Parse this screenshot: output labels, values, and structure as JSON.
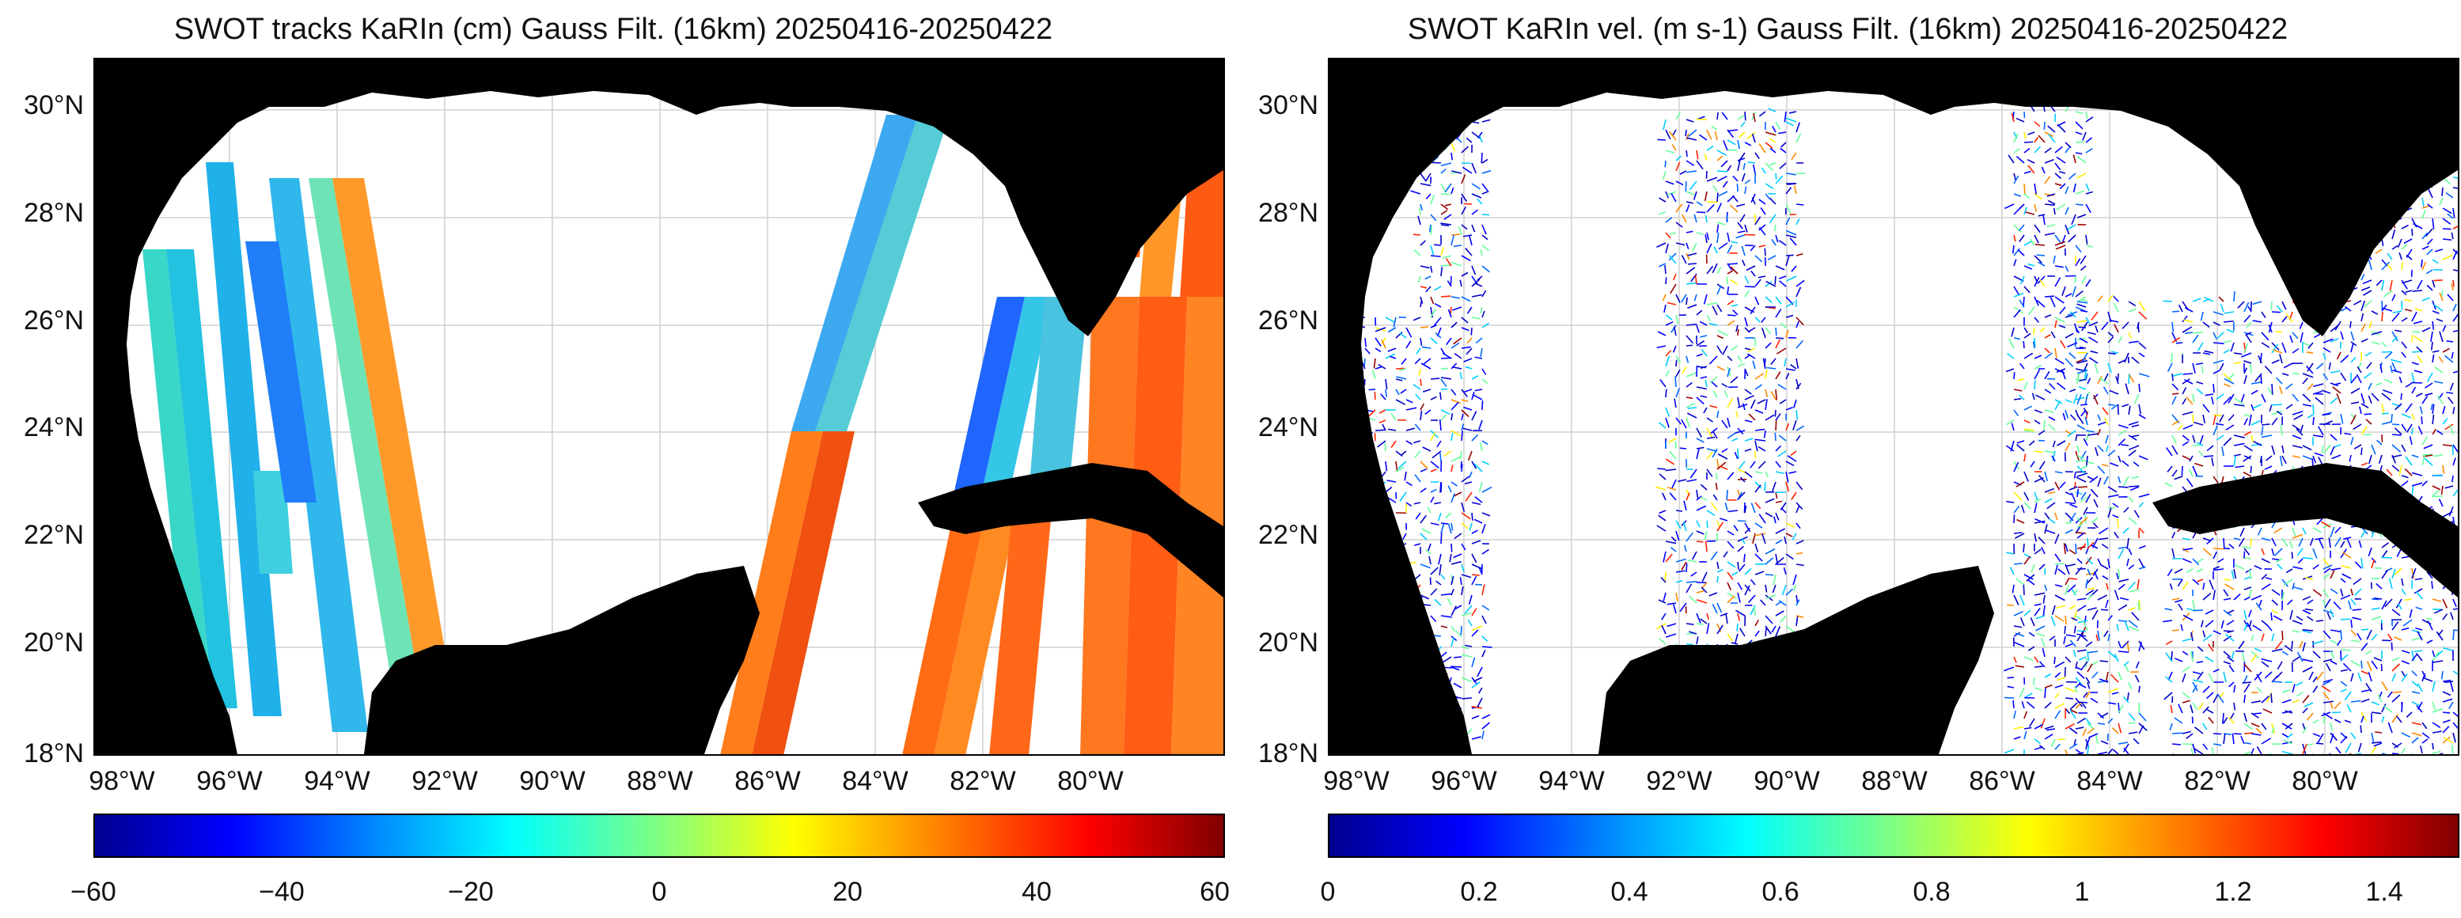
{
  "panels": [
    {
      "title": "SWOT tracks KaRIn (cm) Gauss Filt. (16km) 20250416-20250422",
      "colorbar_ticks": [
        "−60",
        "−40",
        "−20",
        "0",
        "20",
        "40",
        "60"
      ],
      "colorbar_range": [
        -60,
        60
      ],
      "colormap": "jet"
    },
    {
      "title": "SWOT KaRIn vel. (m s-1) Gauss Filt. (16km) 20250416-20250422",
      "colorbar_ticks": [
        "0",
        "0.2",
        "0.4",
        "0.6",
        "0.8",
        "1",
        "1.2",
        "1.4"
      ],
      "colorbar_range": [
        0,
        1.5
      ],
      "colormap": "jet"
    }
  ],
  "lat_labels": [
    "30°N",
    "28°N",
    "26°N",
    "24°N",
    "22°N",
    "20°N",
    "18°N"
  ],
  "lon_labels": [
    "98°W",
    "96°W",
    "94°W",
    "92°W",
    "90°W",
    "88°W",
    "86°W",
    "84°W",
    "82°W",
    "80°W"
  ],
  "map_extent": {
    "lon_min": -99.0,
    "lon_max": -78.0,
    "lat_min": 18.0,
    "lat_max": 31.0
  },
  "colors": {
    "land": "#000000",
    "ocean": "#ffffff",
    "grid": "#d0d0d0"
  }
}
